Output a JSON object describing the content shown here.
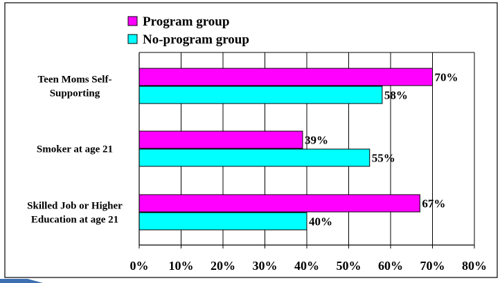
{
  "chart_data": {
    "type": "bar",
    "orientation": "horizontal",
    "categories": [
      [
        "Teen Moms Self-",
        "Supporting"
      ],
      [
        "Smoker at age 21"
      ],
      [
        "Skilled Job or Higher",
        "Education at age 21"
      ]
    ],
    "series": [
      {
        "name": "Program group",
        "color": "#ff00ff",
        "values": [
          70,
          39,
          67
        ],
        "labels": [
          "70%",
          "39%",
          "67%"
        ]
      },
      {
        "name": "No-program group",
        "color": "#00ffff",
        "values": [
          58,
          55,
          40
        ],
        "labels": [
          "58%",
          "55%",
          "40%"
        ]
      }
    ],
    "xlim": [
      0,
      80
    ],
    "x_ticks": [
      0,
      10,
      20,
      30,
      40,
      50,
      60,
      70,
      80
    ],
    "x_tick_labels": [
      "0%",
      "10%",
      "20%",
      "30%",
      "40%",
      "50%",
      "60%",
      "70%",
      "80%"
    ],
    "grid": "vertical",
    "legend_position": "top-left",
    "title": "",
    "xlabel": "",
    "ylabel": ""
  }
}
